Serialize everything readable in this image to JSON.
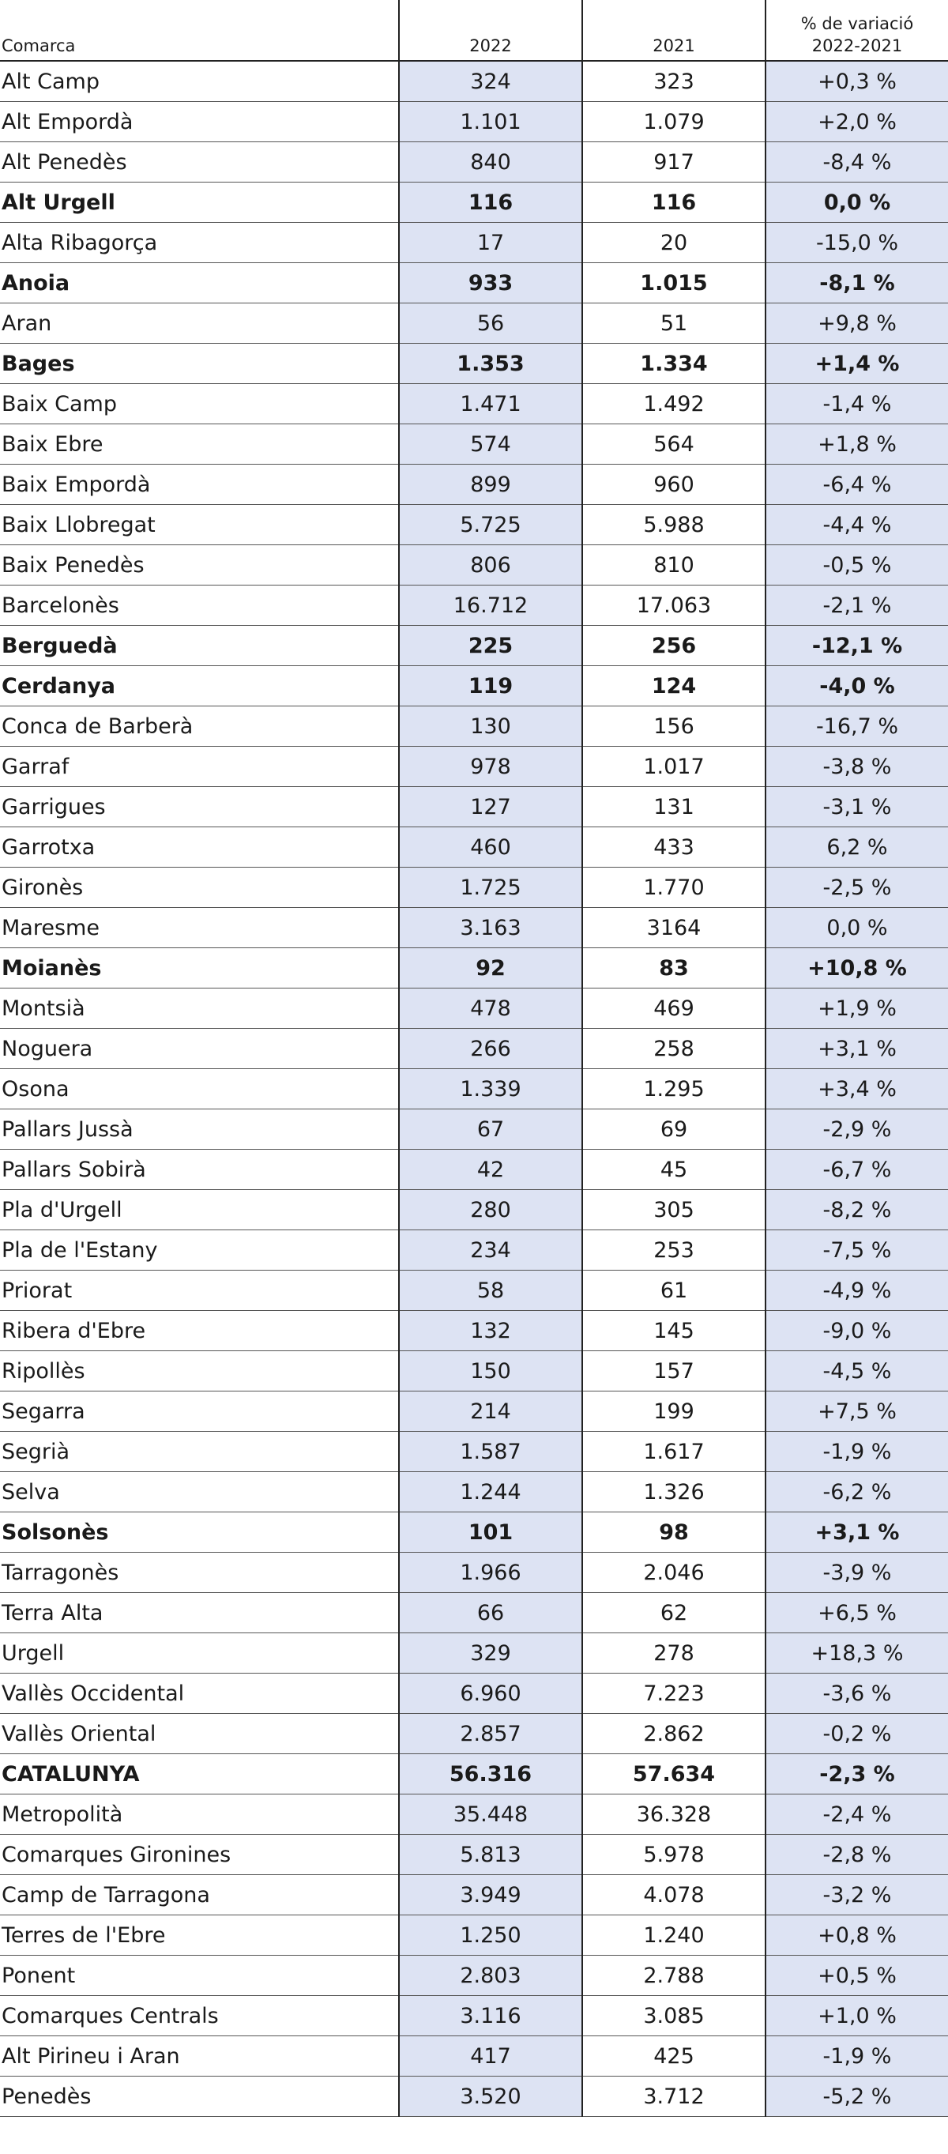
{
  "header": {
    "col_name": "Comarca",
    "col_2022": "2022",
    "col_2021": "2021",
    "col_var_line1": "% de variació",
    "col_var_line2": "2022-2021"
  },
  "colors": {
    "highlight_column": "#dde3f3",
    "border": "#222222"
  },
  "rows": [
    {
      "name": "Alt Camp",
      "v2022": "324",
      "v2021": "323",
      "var": "+0,3 %",
      "bold": false
    },
    {
      "name": "Alt Empordà",
      "v2022": "1.101",
      "v2021": "1.079",
      "var": "+2,0 %",
      "bold": false
    },
    {
      "name": "Alt Penedès",
      "v2022": "840",
      "v2021": "917",
      "var": "-8,4 %",
      "bold": false
    },
    {
      "name": "Alt Urgell",
      "v2022": "116",
      "v2021": "116",
      "var": "0,0 %",
      "bold": true
    },
    {
      "name": "Alta Ribagorça",
      "v2022": "17",
      "v2021": "20",
      "var": "-15,0 %",
      "bold": false
    },
    {
      "name": "Anoia",
      "v2022": "933",
      "v2021": "1.015",
      "var": "-8,1 %",
      "bold": true
    },
    {
      "name": "Aran",
      "v2022": "56",
      "v2021": "51",
      "var": "+9,8 %",
      "bold": false
    },
    {
      "name": "Bages",
      "v2022": "1.353",
      "v2021": "1.334",
      "var": "+1,4 %",
      "bold": true
    },
    {
      "name": "Baix Camp",
      "v2022": "1.471",
      "v2021": "1.492",
      "var": "-1,4 %",
      "bold": false
    },
    {
      "name": "Baix Ebre",
      "v2022": "574",
      "v2021": "564",
      "var": "+1,8 %",
      "bold": false
    },
    {
      "name": "Baix Empordà",
      "v2022": "899",
      "v2021": "960",
      "var": "-6,4 %",
      "bold": false
    },
    {
      "name": "Baix Llobregat",
      "v2022": "5.725",
      "v2021": "5.988",
      "var": "-4,4 %",
      "bold": false
    },
    {
      "name": "Baix Penedès",
      "v2022": "806",
      "v2021": "810",
      "var": "-0,5 %",
      "bold": false
    },
    {
      "name": "Barcelonès",
      "v2022": "16.712",
      "v2021": "17.063",
      "var": "-2,1 %",
      "bold": false
    },
    {
      "name": "Berguedà",
      "v2022": "225",
      "v2021": "256",
      "var": "-12,1 %",
      "bold": true
    },
    {
      "name": "Cerdanya",
      "v2022": "119",
      "v2021": "124",
      "var": "-4,0 %",
      "bold": true
    },
    {
      "name": "Conca de Barberà",
      "v2022": "130",
      "v2021": "156",
      "var": "-16,7 %",
      "bold": false
    },
    {
      "name": "Garraf",
      "v2022": "978",
      "v2021": "1.017",
      "var": "-3,8 %",
      "bold": false
    },
    {
      "name": "Garrigues",
      "v2022": "127",
      "v2021": "131",
      "var": "-3,1 %",
      "bold": false
    },
    {
      "name": "Garrotxa",
      "v2022": "460",
      "v2021": "433",
      "var": "6,2 %",
      "bold": false
    },
    {
      "name": "Gironès",
      "v2022": "1.725",
      "v2021": "1.770",
      "var": "-2,5 %",
      "bold": false
    },
    {
      "name": "Maresme",
      "v2022": "3.163",
      "v2021": "3164",
      "var": "0,0 %",
      "bold": false
    },
    {
      "name": "Moianès",
      "v2022": "92",
      "v2021": "83",
      "var": "+10,8 %",
      "bold": true
    },
    {
      "name": "Montsià",
      "v2022": "478",
      "v2021": "469",
      "var": "+1,9 %",
      "bold": false
    },
    {
      "name": "Noguera",
      "v2022": "266",
      "v2021": "258",
      "var": "+3,1 %",
      "bold": false
    },
    {
      "name": "Osona",
      "v2022": "1.339",
      "v2021": "1.295",
      "var": "+3,4 %",
      "bold": false
    },
    {
      "name": "Pallars Jussà",
      "v2022": "67",
      "v2021": "69",
      "var": "-2,9 %",
      "bold": false
    },
    {
      "name": "Pallars Sobirà",
      "v2022": "42",
      "v2021": "45",
      "var": "-6,7 %",
      "bold": false
    },
    {
      "name": "Pla d'Urgell",
      "v2022": "280",
      "v2021": "305",
      "var": "-8,2 %",
      "bold": false
    },
    {
      "name": "Pla de l'Estany",
      "v2022": "234",
      "v2021": "253",
      "var": "-7,5 %",
      "bold": false
    },
    {
      "name": "Priorat",
      "v2022": "58",
      "v2021": "61",
      "var": "-4,9 %",
      "bold": false
    },
    {
      "name": "Ribera d'Ebre",
      "v2022": "132",
      "v2021": "145",
      "var": "-9,0 %",
      "bold": false
    },
    {
      "name": "Ripollès",
      "v2022": "150",
      "v2021": "157",
      "var": "-4,5 %",
      "bold": false
    },
    {
      "name": "Segarra",
      "v2022": "214",
      "v2021": "199",
      "var": "+7,5 %",
      "bold": false
    },
    {
      "name": "Segrià",
      "v2022": "1.587",
      "v2021": "1.617",
      "var": "-1,9 %",
      "bold": false
    },
    {
      "name": "Selva",
      "v2022": "1.244",
      "v2021": "1.326",
      "var": "-6,2 %",
      "bold": false
    },
    {
      "name": "Solsonès",
      "v2022": "101",
      "v2021": "98",
      "var": "+3,1 %",
      "bold": true
    },
    {
      "name": "Tarragonès",
      "v2022": "1.966",
      "v2021": "2.046",
      "var": "-3,9 %",
      "bold": false
    },
    {
      "name": "Terra Alta",
      "v2022": "66",
      "v2021": "62",
      "var": "+6,5 %",
      "bold": false
    },
    {
      "name": "Urgell",
      "v2022": "329",
      "v2021": "278",
      "var": "+18,3 %",
      "bold": false
    },
    {
      "name": "Vallès Occidental",
      "v2022": "6.960",
      "v2021": "7.223",
      "var": "-3,6 %",
      "bold": false
    },
    {
      "name": "Vallès Oriental",
      "v2022": "2.857",
      "v2021": "2.862",
      "var": "-0,2 %",
      "bold": false
    },
    {
      "name": "CATALUNYA",
      "v2022": "56.316",
      "v2021": "57.634",
      "var": "-2,3 %",
      "bold": true
    },
    {
      "name": "Metropolità",
      "v2022": "35.448",
      "v2021": "36.328",
      "var": "-2,4 %",
      "bold": false
    },
    {
      "name": "Comarques Gironines",
      "v2022": "5.813",
      "v2021": "5.978",
      "var": "-2,8 %",
      "bold": false
    },
    {
      "name": "Camp de Tarragona",
      "v2022": "3.949",
      "v2021": "4.078",
      "var": "-3,2 %",
      "bold": false
    },
    {
      "name": "Terres de l'Ebre",
      "v2022": "1.250",
      "v2021": "1.240",
      "var": "+0,8 %",
      "bold": false
    },
    {
      "name": "Ponent",
      "v2022": "2.803",
      "v2021": "2.788",
      "var": "+0,5 %",
      "bold": false
    },
    {
      "name": "Comarques Centrals",
      "v2022": "3.116",
      "v2021": "3.085",
      "var": "+1,0 %",
      "bold": false
    },
    {
      "name": "Alt Pirineu i Aran",
      "v2022": "417",
      "v2021": "425",
      "var": "-1,9 %",
      "bold": false
    },
    {
      "name": "Penedès",
      "v2022": "3.520",
      "v2021": "3.712",
      "var": "-5,2 %",
      "bold": false
    }
  ]
}
